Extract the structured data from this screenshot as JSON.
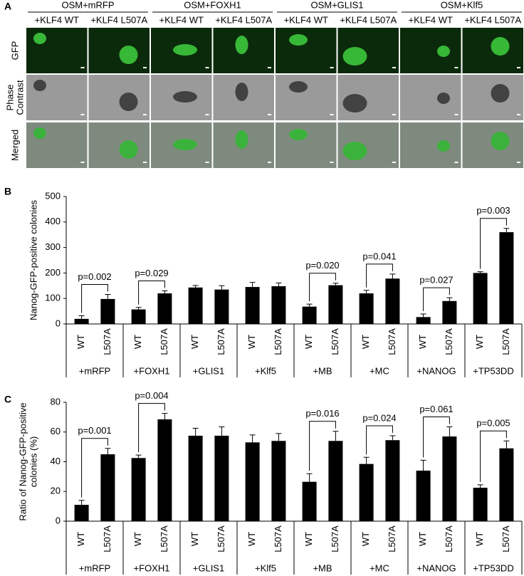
{
  "panel_labels": [
    "A",
    "B",
    "C"
  ],
  "panel_a": {
    "groups": [
      "OSM+mRFP",
      "OSM+FOXH1",
      "OSM+GLIS1",
      "OSM+Klf5"
    ],
    "subgroups": [
      "+KLF4 WT",
      "+KLF4 L507A"
    ],
    "rows": [
      [
        "GFP"
      ],
      [
        "Phase",
        "Contrast"
      ],
      [
        "Merged"
      ]
    ]
  },
  "chart_data": [
    {
      "type": "bar",
      "ylabel": [
        "Nanog-GFP-positive colonies"
      ],
      "groups": [
        "+mRFP",
        "+FOXH1",
        "+GLIS1",
        "+Klf5",
        "+MB",
        "+MC",
        "+NANOG",
        "+TP53DD"
      ],
      "subcategories": [
        "WT",
        "L507A"
      ],
      "series": [
        {
          "color": "#000000",
          "values": [
            20,
            57,
            143,
            145,
            68,
            120,
            27,
            200
          ],
          "errors": [
            12,
            8,
            8,
            18,
            10,
            12,
            12,
            5
          ]
        },
        {
          "color": "#000000",
          "values": [
            98,
            120,
            135,
            148,
            152,
            178,
            90,
            360
          ],
          "errors": [
            18,
            10,
            15,
            13,
            8,
            18,
            13,
            15
          ]
        }
      ],
      "annotations": [
        "p=0.002",
        "p=0.029",
        null,
        null,
        "p=0.020",
        "p=0.041",
        "p=0.027",
        "p=0.003"
      ],
      "ylim": [
        0,
        500
      ],
      "yticks": [
        0,
        100,
        200,
        300,
        400,
        500
      ]
    },
    {
      "type": "bar",
      "ylabel": [
        "Ratio of Nanog-GFP-positive",
        "colonies (%)"
      ],
      "groups": [
        "+mRFP",
        "+FOXH1",
        "+GLIS1",
        "+Klf5",
        "+MB",
        "+MC",
        "+NANOG",
        "+TP53DD"
      ],
      "subcategories": [
        "WT",
        "L507A"
      ],
      "series": [
        {
          "color": "#000000",
          "values": [
            11,
            42.5,
            57.5,
            53,
            26.5,
            38.5,
            34,
            22.5
          ],
          "errors": [
            3,
            2,
            5,
            5,
            5.5,
            4.5,
            7,
            2
          ]
        },
        {
          "color": "#000000",
          "values": [
            45,
            68.5,
            57.5,
            54,
            54,
            54.5,
            57,
            49
          ],
          "errors": [
            4,
            4,
            6,
            5,
            6.5,
            3,
            6.5,
            5
          ]
        }
      ],
      "annotations": [
        "p=0.001",
        "p=0.004",
        null,
        null,
        "p=0.016",
        "p=0.024",
        "p=0.061",
        "p=0.005"
      ],
      "ylim": [
        0,
        80
      ],
      "yticks": [
        0,
        20,
        40,
        60,
        80
      ]
    }
  ]
}
